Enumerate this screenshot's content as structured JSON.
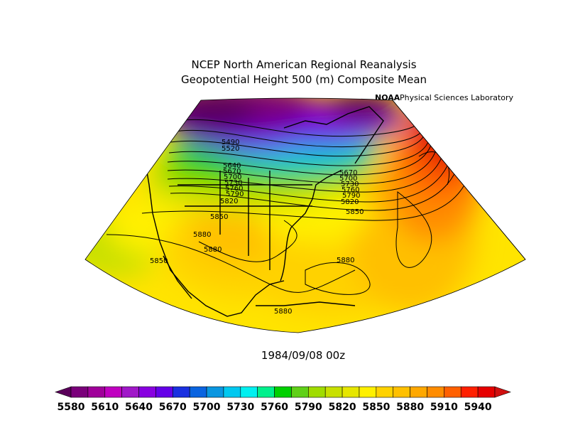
{
  "header": {
    "title_line1": "NCEP North American Regional Reanalysis",
    "title_line2": "Geopotential Height 500 (m) Composite Mean",
    "credit_noaa": "NOAA",
    "credit_lab": "Physical Sciences Laboratory"
  },
  "map": {
    "projection": "lambert-conformal",
    "region": "North America",
    "variable": "Geopotential Height 500 (m)",
    "contour_labels": [
      "5490",
      "5520",
      "5640",
      "5670",
      "5700",
      "5730",
      "5760",
      "5790",
      "5820",
      "5850",
      "5670",
      "5700",
      "5730",
      "5760",
      "5790",
      "5820",
      "5850",
      "5880",
      "5880",
      "5850",
      "5880",
      "5880"
    ],
    "date_stamp": "1984/09/08 00z"
  },
  "colorbar": {
    "ticks": [
      "5580",
      "5610",
      "5640",
      "5670",
      "5700",
      "5730",
      "5760",
      "5790",
      "5820",
      "5850",
      "5880",
      "5910",
      "5940"
    ],
    "colors": [
      "#5a005a",
      "#7a007a",
      "#a0009a",
      "#c000c0",
      "#a018c8",
      "#8800e0",
      "#6400e8",
      "#1a30e0",
      "#0a64e0",
      "#0a96e0",
      "#00c8f0",
      "#00f0f0",
      "#00f08c",
      "#00d000",
      "#60d018",
      "#a0dc00",
      "#c8e000",
      "#e6e600",
      "#fff000",
      "#ffd200",
      "#ffc000",
      "#ffa800",
      "#ff8c00",
      "#ff6000",
      "#ff2000",
      "#e60000",
      "#d01010"
    ]
  }
}
